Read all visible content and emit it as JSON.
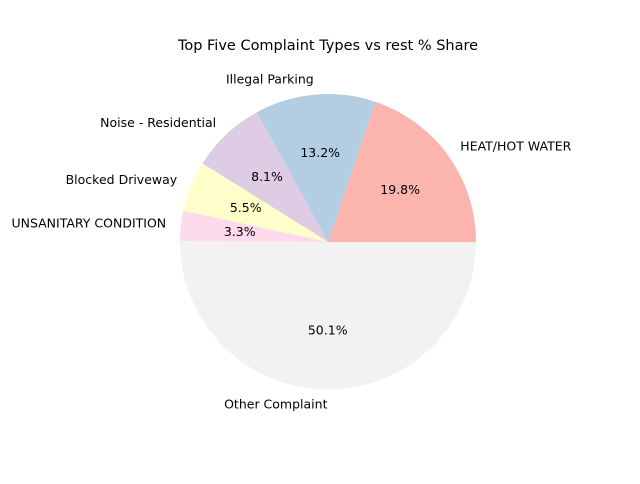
{
  "chart_data": {
    "type": "pie",
    "title": "Top Five Complaint Types vs rest % Share",
    "slices": [
      {
        "label": "HEAT/HOT WATER",
        "percent": 19.8,
        "percent_label": "19.8%",
        "color": "#fbb4ae"
      },
      {
        "label": "Illegal Parking",
        "percent": 13.2,
        "percent_label": "13.2%",
        "color": "#b3cde3"
      },
      {
        "label": "Noise - Residential",
        "percent": 8.1,
        "percent_label": "8.1%",
        "color": "#decbe4"
      },
      {
        "label": "Blocked Driveway",
        "percent": 5.5,
        "percent_label": "5.5%",
        "color": "#ffffcc"
      },
      {
        "label": "UNSANITARY CONDITION",
        "percent": 3.3,
        "percent_label": "3.3%",
        "color": "#fddaec"
      },
      {
        "label": "Other Complaint",
        "percent": 50.1,
        "percent_label": "50.1%",
        "color": "#f2f2f2"
      }
    ],
    "start_angle_deg": 0,
    "direction": "counterclockwise",
    "legend": "none"
  }
}
